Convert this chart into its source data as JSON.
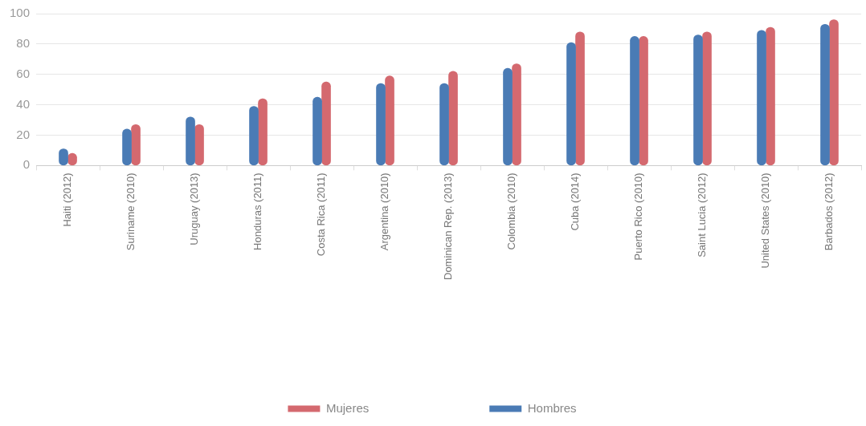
{
  "chart_data": {
    "type": "bar",
    "categories": [
      "Haiti (2012)",
      "Suriname (2010)",
      "Uruguay (2013)",
      "Honduras (2011)",
      "Costa Rica (2011)",
      "Argentina (2010)",
      "Dominican Rep. (2013)",
      "Colombia (2010)",
      "Cuba (2014)",
      "Puerto Rico (2010)",
      "Saint Lucia (2012)",
      "United States (2010)",
      "Barbados (2012)"
    ],
    "series": [
      {
        "name": "Hombres",
        "color": "#4a7bb5",
        "values": [
          11,
          24,
          32,
          39,
          45,
          54,
          54,
          64,
          81,
          85,
          86,
          89,
          93
        ]
      },
      {
        "name": "Mujeres",
        "color": "#d4696f",
        "values": [
          8,
          27,
          27,
          44,
          55,
          59,
          62,
          67,
          88,
          85,
          88,
          91,
          96
        ]
      }
    ],
    "ylim": [
      0,
      100
    ],
    "yticks": [
      0,
      20,
      40,
      60,
      80,
      100
    ],
    "grid": "y",
    "legend": "bottom"
  }
}
